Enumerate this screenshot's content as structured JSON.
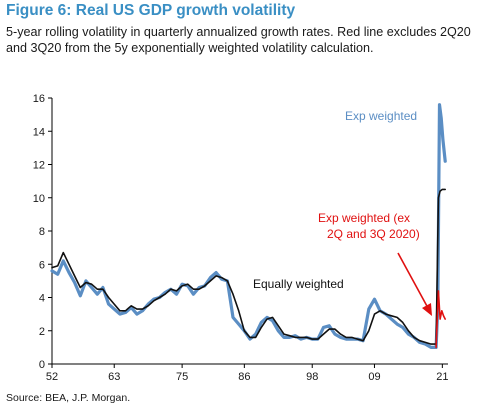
{
  "figure": {
    "title": "Figure 6: Real US GDP growth volatility",
    "subtitle": "5-year rolling volatility in quarterly annualized growth rates. Red line excludes 2Q20 and 3Q20 from the 5y exponentially weighted volatility calculation.",
    "source": "Source: BEA, J.P. Morgan."
  },
  "chart_data": {
    "type": "line",
    "title": "Figure 6: Real US GDP growth volatility",
    "xlabel": "",
    "ylabel": "",
    "xlim": [
      1952,
      2022
    ],
    "ylim": [
      0,
      16
    ],
    "x_ticks": [
      1952,
      1963,
      1975,
      1986,
      1998,
      2009,
      2021
    ],
    "x_tick_labels": [
      "52",
      "63",
      "75",
      "86",
      "98",
      "09",
      "21"
    ],
    "y_ticks": [
      0,
      2,
      4,
      6,
      8,
      10,
      12,
      14,
      16
    ],
    "y_tick_labels": [
      "0",
      "2",
      "4",
      "6",
      "8",
      "10",
      "12",
      "14",
      "16"
    ],
    "grid": false,
    "series": [
      {
        "name": "Exp weighted",
        "color": "#5b8ec4",
        "x": [
          1952,
          1953,
          1954,
          1955,
          1956,
          1957,
          1958,
          1959,
          1960,
          1961,
          1962,
          1963,
          1964,
          1965,
          1966,
          1967,
          1968,
          1969,
          1970,
          1971,
          1972,
          1973,
          1974,
          1975,
          1976,
          1977,
          1978,
          1979,
          1980,
          1981,
          1982,
          1983,
          1984,
          1985,
          1986,
          1987,
          1988,
          1989,
          1990,
          1991,
          1992,
          1993,
          1994,
          1995,
          1996,
          1997,
          1998,
          1999,
          2000,
          2001,
          2002,
          2003,
          2004,
          2005,
          2006,
          2007,
          2008,
          2009,
          2010,
          2011,
          2012,
          2013,
          2014,
          2015,
          2016,
          2017,
          2018,
          2019,
          2019.9,
          2020.2,
          2020.5,
          2020.8,
          2021.1,
          2021.5
        ],
        "y": [
          5.6,
          5.4,
          6.2,
          5.5,
          4.9,
          4.1,
          5.0,
          4.6,
          4.2,
          4.6,
          3.6,
          3.3,
          3.0,
          3.1,
          3.4,
          3.0,
          3.2,
          3.6,
          3.9,
          4.0,
          4.3,
          4.5,
          4.2,
          4.8,
          4.7,
          4.2,
          4.6,
          4.7,
          5.2,
          5.5,
          5.1,
          5.0,
          2.8,
          2.4,
          2.0,
          1.5,
          1.8,
          2.5,
          2.8,
          2.6,
          2.0,
          1.6,
          1.6,
          1.7,
          1.5,
          1.6,
          1.5,
          1.5,
          2.2,
          2.3,
          1.8,
          1.6,
          1.5,
          1.5,
          1.5,
          1.4,
          3.3,
          3.9,
          3.2,
          3.0,
          2.7,
          2.4,
          2.2,
          1.8,
          1.6,
          1.3,
          1.2,
          1.0,
          1.0,
          3.5,
          15.6,
          14.8,
          13.5,
          12.2
        ]
      },
      {
        "name": "Equally weighted",
        "color": "#111111",
        "x": [
          1952,
          1953,
          1954,
          1955,
          1956,
          1957,
          1958,
          1959,
          1960,
          1961,
          1962,
          1963,
          1964,
          1965,
          1966,
          1967,
          1968,
          1969,
          1970,
          1971,
          1972,
          1973,
          1974,
          1975,
          1976,
          1977,
          1978,
          1979,
          1980,
          1981,
          1982,
          1983,
          1984,
          1985,
          1986,
          1987,
          1988,
          1989,
          1990,
          1991,
          1992,
          1993,
          1994,
          1995,
          1996,
          1997,
          1998,
          1999,
          2000,
          2001,
          2002,
          2003,
          2004,
          2005,
          2006,
          2007,
          2008,
          2009,
          2010,
          2011,
          2012,
          2013,
          2014,
          2015,
          2016,
          2017,
          2018,
          2019,
          2019.9,
          2020.3,
          2020.6,
          2021.0,
          2021.5
        ],
        "y": [
          5.8,
          5.9,
          6.7,
          6.0,
          5.3,
          4.6,
          4.9,
          4.8,
          4.5,
          4.5,
          4.0,
          3.6,
          3.2,
          3.2,
          3.5,
          3.3,
          3.3,
          3.5,
          3.8,
          4.0,
          4.2,
          4.5,
          4.4,
          4.7,
          4.8,
          4.5,
          4.5,
          4.7,
          5.0,
          5.3,
          5.2,
          5.0,
          4.2,
          3.2,
          2.0,
          1.6,
          1.6,
          2.2,
          2.7,
          2.8,
          2.3,
          1.8,
          1.7,
          1.6,
          1.6,
          1.6,
          1.5,
          1.5,
          1.8,
          2.1,
          2.1,
          1.8,
          1.6,
          1.6,
          1.5,
          1.4,
          2.0,
          3.0,
          3.2,
          3.0,
          2.9,
          2.8,
          2.5,
          2.0,
          1.6,
          1.4,
          1.3,
          1.2,
          1.2,
          10.0,
          10.4,
          10.5,
          10.5
        ]
      },
      {
        "name": "Exp weighted (ex 2Q and 3Q 2020)",
        "color": "#e01010",
        "x": [
          2019.9,
          2020.3,
          2020.6,
          2020.9,
          2021.2,
          2021.5
        ],
        "y": [
          1.0,
          4.4,
          2.7,
          3.2,
          2.9,
          2.7
        ]
      }
    ],
    "annotations": [
      {
        "text": "Exp weighted",
        "color": "#5b8ec4"
      },
      {
        "text": "Equally weighted",
        "color": "#111111"
      },
      {
        "text": "Exp weighted (ex",
        "color": "#e01010"
      },
      {
        "text": "2Q and 3Q 2020)",
        "color": "#e01010"
      }
    ]
  }
}
